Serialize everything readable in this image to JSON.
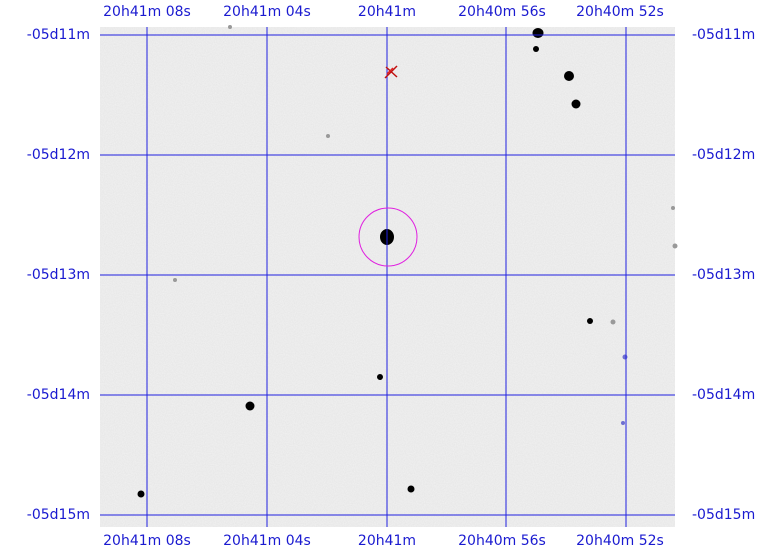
{
  "grid": {
    "ra_labels": [
      "20h41m 08s",
      "20h41m 04s",
      "20h41m",
      "20h40m 56s",
      "20h40m 52s"
    ],
    "dec_labels": [
      "-05d11m",
      "-05d12m",
      "-05d13m",
      "-05d14m",
      "-05d15m"
    ]
  }
}
